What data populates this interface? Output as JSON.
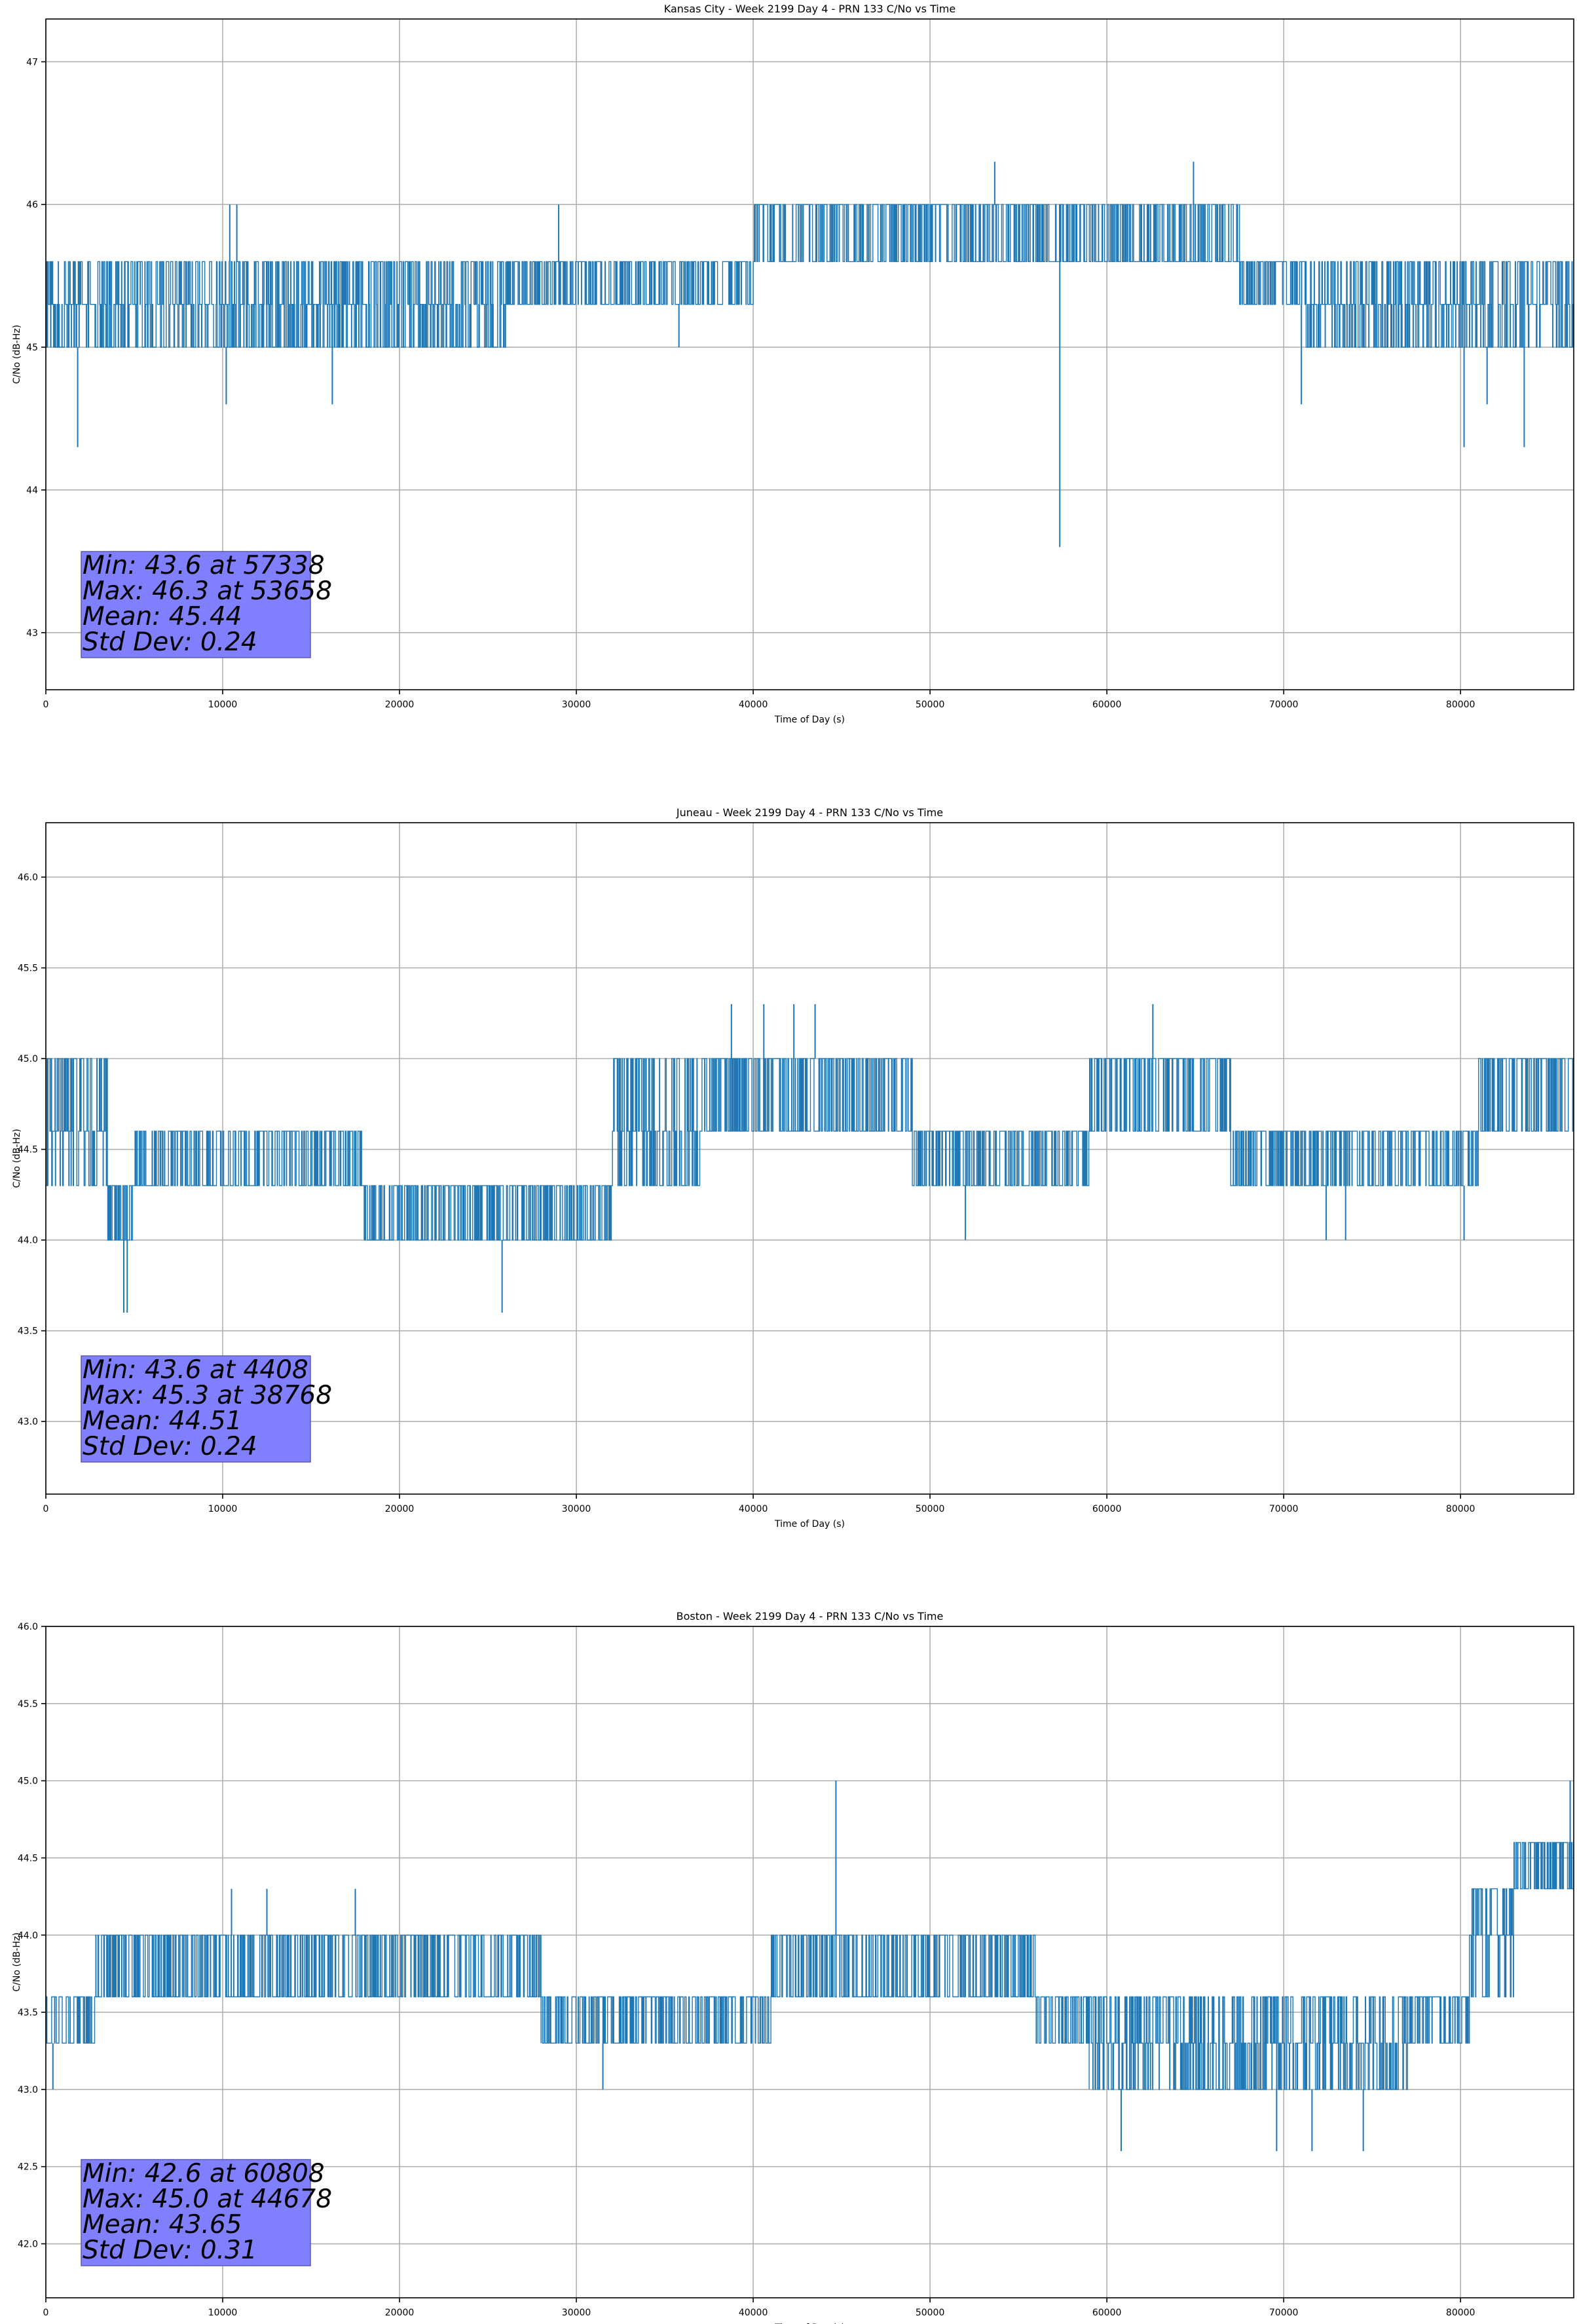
{
  "chart_data": [
    {
      "type": "line",
      "title": "Kansas City - Week 2199 Day 4 - PRN 133 C/No vs Time",
      "xlabel": "Time of Day (s)",
      "ylabel": "C/No (dB-Hz)",
      "xlim": [
        0,
        86400
      ],
      "ylim": [
        42.6,
        47.3
      ],
      "xticks": [
        0,
        10000,
        20000,
        30000,
        40000,
        50000,
        60000,
        70000,
        80000
      ],
      "yticks": [
        43,
        44,
        45,
        46,
        47
      ],
      "ytick_labels": [
        "43",
        "44",
        "45",
        "46",
        "47"
      ],
      "grid": true,
      "series_color": "#1f77b4",
      "series": [
        {
          "regimes": [
            {
              "x": [
                0,
                26000
              ],
              "levels": [
                45.0,
                45.3,
                45.6
              ]
            },
            {
              "x": [
                26000,
                40000
              ],
              "levels": [
                45.3,
                45.6
              ]
            },
            {
              "x": [
                40000,
                67500
              ],
              "levels": [
                45.6,
                46.0
              ]
            },
            {
              "x": [
                67500,
                71000
              ],
              "levels": [
                45.3,
                45.6
              ]
            },
            {
              "x": [
                71000,
                86400
              ],
              "levels": [
                45.0,
                45.3,
                45.6
              ]
            }
          ],
          "spikes": [
            {
              "x": 1800,
              "y": 44.3
            },
            {
              "x": 10200,
              "y": 44.6
            },
            {
              "x": 10400,
              "y": 46.0
            },
            {
              "x": 10800,
              "y": 46.0
            },
            {
              "x": 16200,
              "y": 44.6
            },
            {
              "x": 29000,
              "y": 46.0
            },
            {
              "x": 35800,
              "y": 45.0
            },
            {
              "x": 53658,
              "y": 46.3
            },
            {
              "x": 57338,
              "y": 43.6
            },
            {
              "x": 64900,
              "y": 46.3
            },
            {
              "x": 71000,
              "y": 44.6
            },
            {
              "x": 80200,
              "y": 44.3
            },
            {
              "x": 81500,
              "y": 44.6
            },
            {
              "x": 83600,
              "y": 44.3
            },
            {
              "x": 86000,
              "y": 45.0
            }
          ]
        }
      ],
      "stats_lines": [
        "Min: 43.6 at 57338",
        "Max: 46.3 at 53658",
        "Mean: 45.44",
        "Std Dev: 0.24"
      ],
      "stats_box_color": "#8080ff"
    },
    {
      "type": "line",
      "title": "Juneau - Week 2199 Day 4 - PRN 133 C/No vs Time",
      "xlabel": "Time of Day (s)",
      "ylabel": "C/No (dB-Hz)",
      "xlim": [
        0,
        86400
      ],
      "ylim": [
        42.6,
        46.3
      ],
      "xticks": [
        0,
        10000,
        20000,
        30000,
        40000,
        50000,
        60000,
        70000,
        80000
      ],
      "yticks": [
        43.0,
        43.5,
        44.0,
        44.5,
        45.0,
        45.5,
        46.0
      ],
      "ytick_labels": [
        "43.0",
        "43.5",
        "44.0",
        "44.5",
        "45.0",
        "45.5",
        "46.0"
      ],
      "grid": true,
      "series_color": "#1f77b4",
      "series": [
        {
          "regimes": [
            {
              "x": [
                0,
                3500
              ],
              "levels": [
                44.3,
                44.6,
                45.0
              ]
            },
            {
              "x": [
                3500,
                5000
              ],
              "levels": [
                44.0,
                44.3
              ]
            },
            {
              "x": [
                5000,
                18000
              ],
              "levels": [
                44.3,
                44.6
              ]
            },
            {
              "x": [
                18000,
                32000
              ],
              "levels": [
                44.0,
                44.3
              ]
            },
            {
              "x": [
                32000,
                37000
              ],
              "levels": [
                44.3,
                44.6,
                45.0
              ]
            },
            {
              "x": [
                37000,
                49000
              ],
              "levels": [
                44.6,
                45.0
              ]
            },
            {
              "x": [
                49000,
                59000
              ],
              "levels": [
                44.3,
                44.6
              ]
            },
            {
              "x": [
                59000,
                67000
              ],
              "levels": [
                44.6,
                45.0
              ]
            },
            {
              "x": [
                67000,
                81000
              ],
              "levels": [
                44.3,
                44.6
              ]
            },
            {
              "x": [
                81000,
                86400
              ],
              "levels": [
                44.6,
                45.0
              ]
            }
          ],
          "spikes": [
            {
              "x": 4408,
              "y": 43.6
            },
            {
              "x": 4600,
              "y": 43.6
            },
            {
              "x": 25800,
              "y": 43.6
            },
            {
              "x": 38768,
              "y": 45.3
            },
            {
              "x": 40600,
              "y": 45.3
            },
            {
              "x": 42300,
              "y": 45.3
            },
            {
              "x": 43500,
              "y": 45.3
            },
            {
              "x": 52000,
              "y": 44.0
            },
            {
              "x": 62600,
              "y": 45.3
            },
            {
              "x": 72400,
              "y": 44.0
            },
            {
              "x": 73500,
              "y": 44.0
            },
            {
              "x": 80200,
              "y": 44.0
            }
          ]
        }
      ],
      "stats_lines": [
        "Min: 43.6 at 4408",
        "Max: 45.3 at 38768",
        "Mean: 44.51",
        "Std Dev: 0.24"
      ],
      "stats_box_color": "#8080ff"
    },
    {
      "type": "line",
      "title": "Boston - Week 2199 Day 4 - PRN 133 C/No vs Time",
      "xlabel": "Time of Day (s)",
      "ylabel": "C/No (dB-Hz)",
      "xlim": [
        0,
        86400
      ],
      "ylim": [
        41.65,
        46.0
      ],
      "xticks": [
        0,
        10000,
        20000,
        30000,
        40000,
        50000,
        60000,
        70000,
        80000
      ],
      "yticks": [
        42.0,
        42.5,
        43.0,
        43.5,
        44.0,
        44.5,
        45.0,
        45.5,
        46.0
      ],
      "ytick_labels": [
        "42.0",
        "42.5",
        "43.0",
        "43.5",
        "44.0",
        "44.5",
        "45.0",
        "45.5",
        "46.0"
      ],
      "grid": true,
      "series_color": "#1f77b4",
      "series": [
        {
          "regimes": [
            {
              "x": [
                0,
                2800
              ],
              "levels": [
                43.3,
                43.6
              ]
            },
            {
              "x": [
                2800,
                28000
              ],
              "levels": [
                43.6,
                44.0
              ]
            },
            {
              "x": [
                28000,
                41000
              ],
              "levels": [
                43.3,
                43.6
              ]
            },
            {
              "x": [
                41000,
                56000
              ],
              "levels": [
                43.6,
                44.0
              ]
            },
            {
              "x": [
                56000,
                59000
              ],
              "levels": [
                43.3,
                43.6
              ]
            },
            {
              "x": [
                59000,
                77000
              ],
              "levels": [
                43.0,
                43.3,
                43.6
              ]
            },
            {
              "x": [
                77000,
                80500
              ],
              "levels": [
                43.3,
                43.6
              ]
            },
            {
              "x": [
                80500,
                83000
              ],
              "levels": [
                43.6,
                44.0,
                44.3
              ]
            },
            {
              "x": [
                83000,
                86400
              ],
              "levels": [
                44.3,
                44.6
              ]
            }
          ],
          "spikes": [
            {
              "x": 400,
              "y": 43.0
            },
            {
              "x": 10500,
              "y": 44.3
            },
            {
              "x": 12500,
              "y": 44.3
            },
            {
              "x": 17500,
              "y": 44.3
            },
            {
              "x": 31500,
              "y": 43.0
            },
            {
              "x": 44678,
              "y": 45.0
            },
            {
              "x": 60808,
              "y": 42.6
            },
            {
              "x": 69600,
              "y": 42.6
            },
            {
              "x": 71600,
              "y": 42.6
            },
            {
              "x": 74500,
              "y": 42.6
            },
            {
              "x": 86200,
              "y": 45.0
            }
          ]
        }
      ],
      "stats_lines": [
        "Min: 42.6 at 60808",
        "Max: 45.0 at 44678",
        "Mean: 43.65",
        "Std Dev: 0.31"
      ],
      "stats_box_color": "#8080ff"
    }
  ]
}
